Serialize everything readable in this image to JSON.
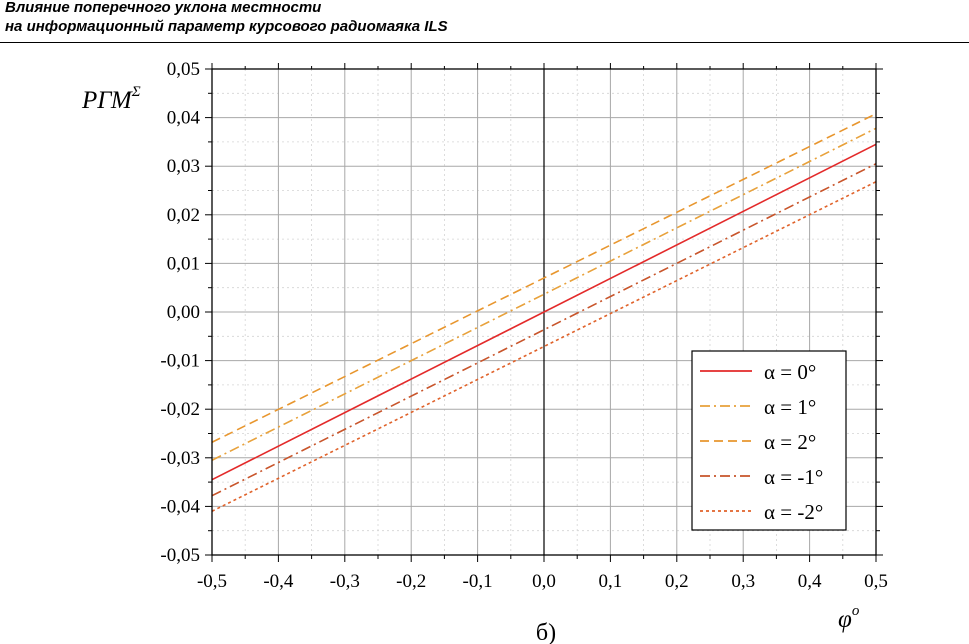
{
  "header": {
    "line1": "Влияние поперечного уклона местности",
    "line2": "на информационный параметр курсового радиомаяка ILS"
  },
  "caption": "б)",
  "chart_data": {
    "type": "line",
    "ylabel": "РГМ",
    "ylabel_sup": "Σ",
    "xlabel": "φ",
    "xlabel_sup": "о",
    "xlim": [
      -0.5,
      0.5
    ],
    "ylim": [
      -0.05,
      0.05
    ],
    "xticks": [
      -0.5,
      -0.4,
      -0.3,
      -0.2,
      -0.1,
      0.0,
      0.1,
      0.2,
      0.3,
      0.4,
      0.5
    ],
    "xtick_labels": [
      "-0,5",
      "-0,4",
      "-0,3",
      "-0,2",
      "-0,1",
      "0,0",
      "0,1",
      "0,2",
      "0,3",
      "0,4",
      "0,5"
    ],
    "yticks": [
      -0.05,
      -0.04,
      -0.03,
      -0.02,
      -0.01,
      0.0,
      0.01,
      0.02,
      0.03,
      0.04,
      0.05
    ],
    "ytick_labels": [
      "-0,05",
      "-0,04",
      "-0,03",
      "-0,02",
      "-0,01",
      "0,00",
      "0,01",
      "0,02",
      "0,03",
      "0,04",
      "0,05"
    ],
    "grid": true,
    "legend_position": "bottom-right",
    "series": [
      {
        "name": "α = 0°",
        "color": "#e32a2a",
        "dash": "solid",
        "x": [
          -0.5,
          0.5
        ],
        "y": [
          -0.0345,
          0.0345
        ]
      },
      {
        "name": "α = 1°",
        "color": "#e8a13a",
        "dash": "dashdot",
        "x": [
          -0.5,
          0.5
        ],
        "y": [
          -0.0305,
          0.0378
        ]
      },
      {
        "name": "α = 2°",
        "color": "#e8962e",
        "dash": "dash",
        "x": [
          -0.5,
          0.5
        ],
        "y": [
          -0.0268,
          0.0408
        ]
      },
      {
        "name": "α = -1°",
        "color": "#c8542a",
        "dash": "dashdot",
        "x": [
          -0.5,
          0.5
        ],
        "y": [
          -0.0378,
          0.0305
        ]
      },
      {
        "name": "α = -2°",
        "color": "#e0622a",
        "dash": "dot",
        "x": [
          -0.5,
          0.5
        ],
        "y": [
          -0.041,
          0.0268
        ]
      }
    ]
  }
}
